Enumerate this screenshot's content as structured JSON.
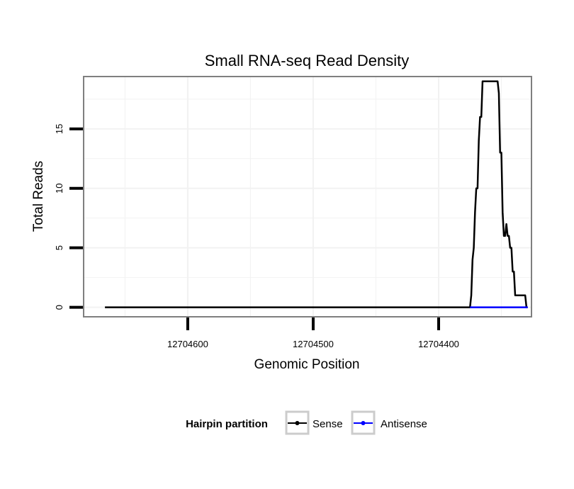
{
  "chart_data": {
    "type": "line",
    "title": "Small RNA-seq Read Density",
    "xlabel": "Genomic Position",
    "ylabel": "Total Reads",
    "x_reversed": true,
    "xlim": [
      12704683,
      12704326
    ],
    "ylim": [
      -0.8,
      19.4
    ],
    "x_ticks": [
      12704600,
      12704500,
      12704400
    ],
    "x_tick_labels": [
      "12704600",
      "12704500",
      "12704400"
    ],
    "y_ticks": [
      0,
      5,
      10,
      15
    ],
    "y_tick_labels": [
      "0",
      "5",
      "10",
      "15"
    ],
    "grid": true,
    "legend": {
      "title": "Hairpin partition",
      "position": "bottom",
      "entries": [
        "Sense",
        "Antisense"
      ]
    },
    "colors": {
      "sense": "#000000",
      "antisense": "#0000ff",
      "panel_border": "#7f7f7f",
      "grid": "#f2f2f2",
      "legend_key_border": "#cccccc"
    },
    "series": [
      {
        "name": "Sense",
        "color": "#000000",
        "points": [
          [
            12704666,
            0
          ],
          [
            12704375,
            0
          ],
          [
            12704374,
            1
          ],
          [
            12704373,
            4
          ],
          [
            12704372,
            5
          ],
          [
            12704371,
            8
          ],
          [
            12704370,
            10
          ],
          [
            12704369,
            10
          ],
          [
            12704368,
            14
          ],
          [
            12704367,
            16
          ],
          [
            12704366,
            16
          ],
          [
            12704365,
            19
          ],
          [
            12704353,
            19
          ],
          [
            12704352,
            18
          ],
          [
            12704351,
            13
          ],
          [
            12704350,
            13
          ],
          [
            12704349,
            8
          ],
          [
            12704348,
            6
          ],
          [
            12704347,
            6
          ],
          [
            12704346,
            7
          ],
          [
            12704345,
            6
          ],
          [
            12704344,
            6
          ],
          [
            12704343,
            5
          ],
          [
            12704342,
            5
          ],
          [
            12704341,
            3
          ],
          [
            12704340,
            3
          ],
          [
            12704339,
            1
          ],
          [
            12704331,
            1
          ],
          [
            12704330,
            0
          ],
          [
            12704329,
            0
          ]
        ]
      },
      {
        "name": "Antisense",
        "color": "#0000ff",
        "points": [
          [
            12704375,
            0
          ],
          [
            12704329,
            0
          ]
        ]
      }
    ]
  }
}
